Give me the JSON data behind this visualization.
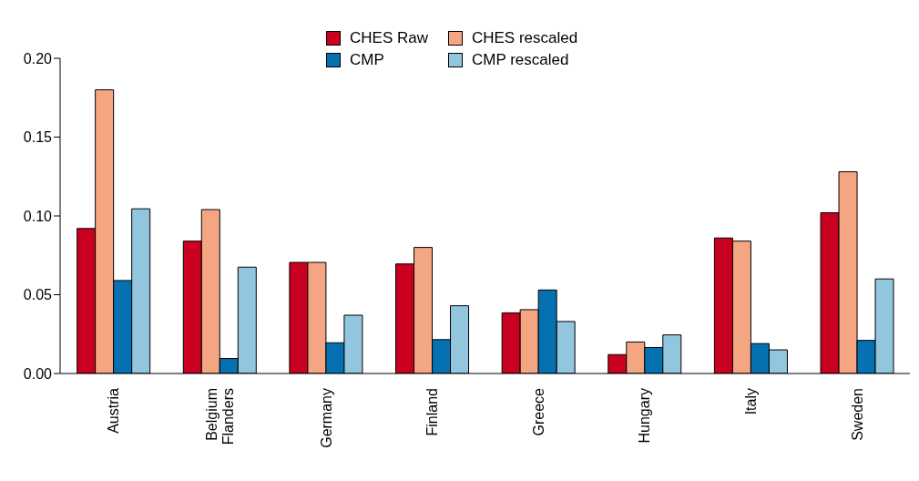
{
  "chart_data": {
    "type": "bar",
    "categories": [
      "Austria",
      "Belgium Flanders",
      "Germany",
      "Finland",
      "Greece",
      "Hungary",
      "Italy",
      "Sweden"
    ],
    "series": [
      {
        "name": "CHES Raw",
        "color": "#ca0020",
        "values": [
          0.092,
          0.084,
          0.0705,
          0.0695,
          0.0385,
          0.012,
          0.086,
          0.102
        ]
      },
      {
        "name": "CHES rescaled",
        "color": "#f4a582",
        "values": [
          0.18,
          0.104,
          0.0705,
          0.08,
          0.0405,
          0.02,
          0.084,
          0.128
        ]
      },
      {
        "name": "CMP",
        "color": "#0571b0",
        "values": [
          0.059,
          0.0095,
          0.0195,
          0.0215,
          0.053,
          0.0165,
          0.019,
          0.021
        ]
      },
      {
        "name": "CMP rescaled",
        "color": "#92c5de",
        "values": [
          0.1045,
          0.0675,
          0.037,
          0.043,
          0.033,
          0.0245,
          0.015,
          0.06
        ]
      }
    ],
    "ylim": [
      0,
      0.2
    ],
    "yticks": [
      {
        "value": 0,
        "label": "0.00"
      },
      {
        "value": 0.05,
        "label": "0.05"
      },
      {
        "value": 0.1,
        "label": "0.10"
      },
      {
        "value": 0.15,
        "label": "0.15"
      },
      {
        "value": 0.2,
        "label": "0.20"
      }
    ],
    "grid": false,
    "legend": "top"
  }
}
